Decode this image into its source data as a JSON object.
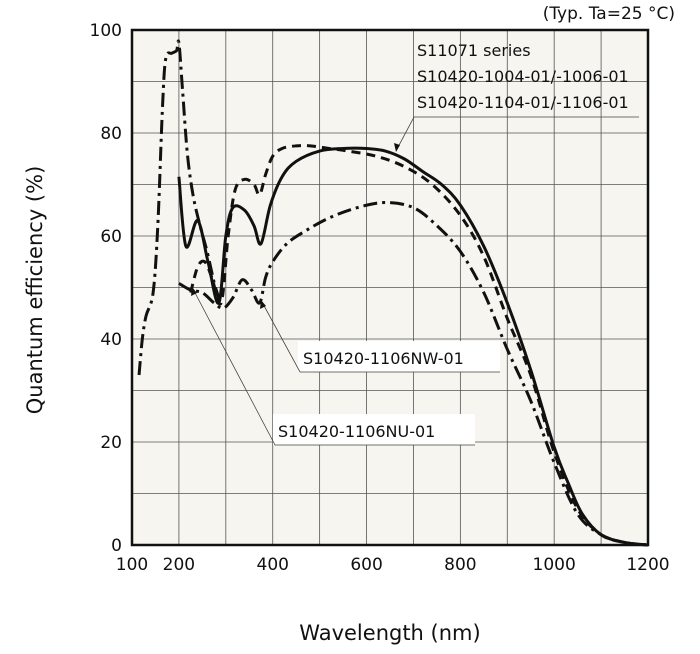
{
  "chart_data": {
    "type": "line",
    "title": "",
    "condition_note": "(Typ. Ta=25 °C)",
    "xlabel": "Wavelength (nm)",
    "ylabel": "Quantum efficiency (%)",
    "xlim": [
      100,
      1200
    ],
    "ylim": [
      0,
      100
    ],
    "x_ticks": [
      100,
      200,
      400,
      600,
      800,
      1000,
      1200
    ],
    "y_ticks": [
      0,
      20,
      40,
      60,
      80,
      100
    ],
    "grid": {
      "x_step": 100,
      "y_step": 10
    },
    "colors": {
      "background": "#f6f5ef",
      "line": "#111111",
      "grid": "#555555"
    },
    "annotations": {
      "main": [
        "S11071 series",
        "S10420-1004-01/-1006-01",
        "S10420-1104-01/-1106-01"
      ],
      "nw": "S10420-1106NW-01",
      "nu": "S10420-1106NU-01"
    },
    "series": [
      {
        "id": "s11071",
        "style": "solid",
        "x": [
          200,
          215,
          240,
          262,
          285,
          300,
          315,
          340,
          360,
          375,
          395,
          420,
          450,
          500,
          550,
          600,
          640,
          680,
          720,
          760,
          800,
          850,
          900,
          950,
          1000,
          1030,
          1060,
          1100,
          1150,
          1200
        ],
        "y": [
          71.5,
          58,
          63,
          55,
          47,
          60,
          65.5,
          65,
          62,
          58.5,
          66,
          71.5,
          74.5,
          76.5,
          77,
          77,
          76.5,
          75,
          72.5,
          70,
          66,
          58,
          47,
          34,
          19,
          12,
          6,
          2,
          0.5,
          0
        ]
      },
      {
        "id": "nu01",
        "style": "dashed",
        "x": [
          225,
          240,
          255,
          270,
          290,
          305,
          320,
          340,
          360,
          372,
          385,
          400,
          420,
          450,
          480,
          520,
          560,
          620,
          680,
          740,
          800,
          850,
          900,
          950,
          1000,
          1050,
          1100,
          1150,
          1200
        ],
        "y": [
          49,
          54,
          55,
          52,
          47,
          60,
          69,
          71,
          70,
          68,
          72,
          75.5,
          77,
          77.5,
          77.5,
          77,
          76.5,
          75.5,
          73.5,
          70,
          64,
          56,
          44,
          33,
          18,
          7,
          2,
          0.5,
          0
        ]
      },
      {
        "id": "nw01",
        "style": "dashdot",
        "x": [
          200,
          225,
          250,
          275,
          295,
          315,
          335,
          355,
          372,
          385,
          400,
          430,
          470,
          520,
          580,
          640,
          700,
          750,
          800,
          850,
          900,
          950,
          1000,
          1050,
          1100,
          1150,
          1200
        ],
        "y": [
          50.8,
          49.5,
          49,
          47,
          46,
          48,
          51.5,
          49.5,
          47,
          52,
          55,
          58.5,
          61,
          63.5,
          65.5,
          66.5,
          65.5,
          62,
          57,
          49,
          38,
          28,
          16,
          6,
          2,
          0.5,
          0
        ]
      },
      {
        "id": "uv_peak",
        "style": "dashdot",
        "x": [
          115,
          122,
          130,
          145,
          155,
          165,
          172,
          185,
          195,
          200,
          208,
          218,
          230,
          245,
          260,
          275,
          285
        ],
        "y": [
          33,
          40,
          44.5,
          49,
          62,
          85,
          94.5,
          95.5,
          96,
          97.5,
          88,
          76,
          68,
          62,
          57,
          51,
          48
        ]
      }
    ]
  }
}
